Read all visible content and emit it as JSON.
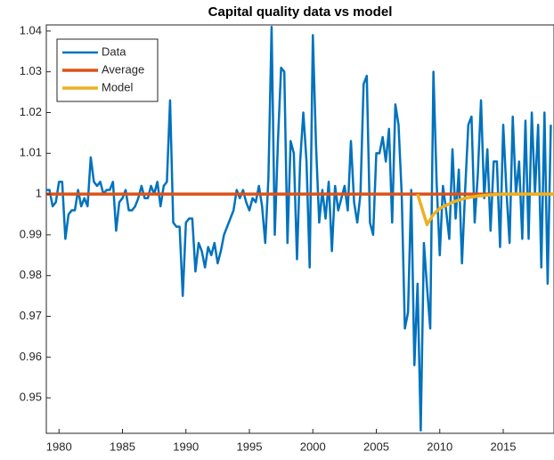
{
  "chart_data": {
    "type": "line",
    "title": "Capital quality data vs model",
    "xlim": [
      1979,
      2019
    ],
    "ylim": [
      0.9413,
      1.0415
    ],
    "xticks": [
      1980,
      1985,
      1990,
      1995,
      2000,
      2005,
      2010,
      2015
    ],
    "yticks": [
      0.95,
      0.96,
      0.97,
      0.98,
      0.99,
      1,
      1.01,
      1.02,
      1.03,
      1.04
    ],
    "legend": "northwest",
    "series": [
      {
        "name": "Data",
        "color": "#0072bd",
        "x": [
          1979,
          1979.25,
          1979.5,
          1979.75,
          1980,
          1980.25,
          1980.5,
          1980.75,
          1981,
          1981.25,
          1981.5,
          1981.75,
          1982,
          1982.25,
          1982.5,
          1982.75,
          1983,
          1983.25,
          1983.5,
          1983.75,
          1984,
          1984.25,
          1984.5,
          1984.75,
          1985,
          1985.25,
          1985.5,
          1985.75,
          1986,
          1986.25,
          1986.5,
          1986.75,
          1987,
          1987.25,
          1987.5,
          1987.75,
          1988,
          1988.25,
          1988.5,
          1988.75,
          1989,
          1989.25,
          1989.5,
          1989.75,
          1990,
          1990.25,
          1990.5,
          1990.75,
          1991,
          1991.25,
          1991.5,
          1991.75,
          1992,
          1992.25,
          1992.5,
          1992.75,
          1993,
          1993.25,
          1993.5,
          1993.75,
          1994,
          1994.25,
          1994.5,
          1994.75,
          1995,
          1995.25,
          1995.5,
          1995.75,
          1996,
          1996.25,
          1996.5,
          1996.75,
          1997,
          1997.25,
          1997.5,
          1997.75,
          1998,
          1998.25,
          1998.5,
          1998.75,
          1999,
          1999.25,
          1999.5,
          1999.75,
          2000,
          2000.25,
          2000.5,
          2000.75,
          2001,
          2001.25,
          2001.5,
          2001.75,
          2002,
          2002.25,
          2002.5,
          2002.75,
          2003,
          2003.25,
          2003.5,
          2003.75,
          2004,
          2004.25,
          2004.5,
          2004.75,
          2005,
          2005.25,
          2005.5,
          2005.75,
          2006,
          2006.25,
          2006.5,
          2006.75,
          2007,
          2007.25,
          2007.5,
          2007.75,
          2008,
          2008.25,
          2008.5,
          2008.75,
          2009,
          2009.25,
          2009.5,
          2009.75,
          2010,
          2010.25,
          2010.5,
          2010.75,
          2011,
          2011.25,
          2011.5,
          2011.75,
          2012,
          2012.25,
          2012.5,
          2012.75,
          2013,
          2013.25,
          2013.5,
          2013.75,
          2014,
          2014.25,
          2014.5,
          2014.75,
          2015,
          2015.25,
          2015.5,
          2015.75,
          2016,
          2016.25,
          2016.5,
          2016.75,
          2017,
          2017.25,
          2017.5,
          2017.75,
          2018,
          2018.25,
          2018.5,
          2018.75
        ],
        "values": [
          1.001,
          1.001,
          0.997,
          0.998,
          1.003,
          1.003,
          0.989,
          0.995,
          0.996,
          0.996,
          1.001,
          0.997,
          0.999,
          0.997,
          1.009,
          1.003,
          1.002,
          1.003,
          1.0,
          1.001,
          1.001,
          1.003,
          0.991,
          0.998,
          0.999,
          1.001,
          0.996,
          0.996,
          0.997,
          0.999,
          1.002,
          0.999,
          0.999,
          1.002,
          1.0,
          1.003,
          0.997,
          1.002,
          1.003,
          1.023,
          0.993,
          0.992,
          0.992,
          0.975,
          0.993,
          0.994,
          0.994,
          0.981,
          0.988,
          0.986,
          0.982,
          0.987,
          0.985,
          0.988,
          0.983,
          0.986,
          0.99,
          0.992,
          0.994,
          0.996,
          1.001,
          0.999,
          1.001,
          0.998,
          0.996,
          0.999,
          0.998,
          1.002,
          0.997,
          0.988,
          1.004,
          1.041,
          0.99,
          1.013,
          1.031,
          1.03,
          0.988,
          1.013,
          1.01,
          0.984,
          1.008,
          1.02,
          1.008,
          0.982,
          1.039,
          1.012,
          0.993,
          1.001,
          0.994,
          1.003,
          0.986,
          1.002,
          0.996,
          0.999,
          1.002,
          0.996,
          1.013,
          0.998,
          0.993,
          1.0,
          1.027,
          1.029,
          0.993,
          0.99,
          1.01,
          1.01,
          1.014,
          1.008,
          1.016,
          0.993,
          1.022,
          1.017,
          1.0,
          0.967,
          0.971,
          1.001,
          0.958,
          0.978,
          0.942,
          0.988,
          0.977,
          0.967,
          1.03,
          1.003,
          0.985,
          1.002,
          0.996,
          0.989,
          1.011,
          0.994,
          1.006,
          0.983,
          1.001,
          1.017,
          1.019,
          0.993,
          1.005,
          1.023,
          0.999,
          1.011,
          0.991,
          1.008,
          1.008,
          0.987,
          1.017,
          1.001,
          0.988,
          1.019,
          1.0,
          1.008,
          0.989,
          1.018,
          0.989,
          1.02,
          1.0,
          1.017,
          0.982,
          1.02,
          0.978,
          1.017
        ]
      },
      {
        "name": "Average",
        "color": "#d95319",
        "x": [
          1979,
          2019
        ],
        "values": [
          1,
          1
        ]
      },
      {
        "name": "Model",
        "color": "#edb120",
        "x": [
          2008.25,
          2009,
          2009.5,
          2010,
          2011,
          2012,
          2013,
          2014,
          2015,
          2019
        ],
        "values": [
          1,
          0.9925,
          0.995,
          0.9965,
          0.998,
          0.999,
          0.9995,
          0.9998,
          1,
          1
        ]
      }
    ]
  }
}
